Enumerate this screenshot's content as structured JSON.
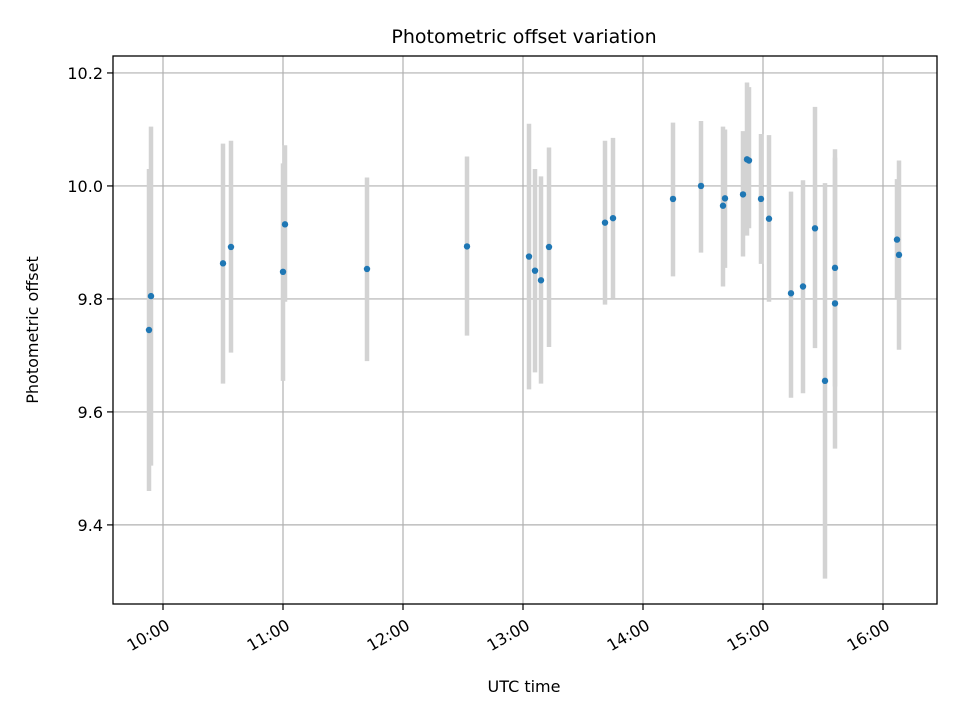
{
  "chart_data": {
    "type": "scatter",
    "title": "Photometric offset variation",
    "xlabel": "UTC time",
    "ylabel": "Photometric offset",
    "x_range": [
      "09:35",
      "16:27"
    ],
    "ylim": [
      9.26,
      10.23
    ],
    "x_ticks": [
      "10:00",
      "11:00",
      "12:00",
      "13:00",
      "14:00",
      "15:00",
      "16:00"
    ],
    "y_ticks": [
      "9.4",
      "9.6",
      "9.8",
      "10.0",
      "10.2"
    ],
    "grid": true,
    "marker_color": "#1f77b4",
    "errorbar_color": "#d3d3d3",
    "points": [
      {
        "x": "09:53",
        "y": 9.745,
        "err_low": 9.46,
        "err_high": 10.03
      },
      {
        "x": "09:54",
        "y": 9.805,
        "err_low": 9.505,
        "err_high": 10.105
      },
      {
        "x": "10:30",
        "y": 9.863,
        "err_low": 9.65,
        "err_high": 10.075
      },
      {
        "x": "10:34",
        "y": 9.892,
        "err_low": 9.705,
        "err_high": 10.08
      },
      {
        "x": "11:00",
        "y": 9.848,
        "err_low": 9.655,
        "err_high": 10.04
      },
      {
        "x": "11:01",
        "y": 9.932,
        "err_low": 9.795,
        "err_high": 10.072
      },
      {
        "x": "11:42",
        "y": 9.853,
        "err_low": 9.69,
        "err_high": 10.015
      },
      {
        "x": "12:32",
        "y": 9.893,
        "err_low": 9.735,
        "err_high": 10.052
      },
      {
        "x": "13:03",
        "y": 9.875,
        "err_low": 9.64,
        "err_high": 10.11
      },
      {
        "x": "13:06",
        "y": 9.85,
        "err_low": 9.67,
        "err_high": 10.03
      },
      {
        "x": "13:09",
        "y": 9.833,
        "err_low": 9.65,
        "err_high": 10.017
      },
      {
        "x": "13:13",
        "y": 9.892,
        "err_low": 9.715,
        "err_high": 10.068
      },
      {
        "x": "13:41",
        "y": 9.935,
        "err_low": 9.79,
        "err_high": 10.08
      },
      {
        "x": "13:45",
        "y": 9.943,
        "err_low": 9.8,
        "err_high": 10.085
      },
      {
        "x": "14:15",
        "y": 9.977,
        "err_low": 9.84,
        "err_high": 10.112
      },
      {
        "x": "14:29",
        "y": 10.0,
        "err_low": 9.882,
        "err_high": 10.115
      },
      {
        "x": "14:40",
        "y": 9.965,
        "err_low": 9.822,
        "err_high": 10.105
      },
      {
        "x": "14:41",
        "y": 9.978,
        "err_low": 9.855,
        "err_high": 10.1
      },
      {
        "x": "14:50",
        "y": 9.985,
        "err_low": 9.875,
        "err_high": 10.097
      },
      {
        "x": "14:52",
        "y": 10.047,
        "err_low": 9.912,
        "err_high": 10.183
      },
      {
        "x": "14:53",
        "y": 10.045,
        "err_low": 9.925,
        "err_high": 10.175
      },
      {
        "x": "14:59",
        "y": 9.977,
        "err_low": 9.862,
        "err_high": 10.092
      },
      {
        "x": "15:03",
        "y": 9.942,
        "err_low": 9.795,
        "err_high": 10.09
      },
      {
        "x": "15:14",
        "y": 9.81,
        "err_low": 9.625,
        "err_high": 9.99
      },
      {
        "x": "15:20",
        "y": 9.822,
        "err_low": 9.633,
        "err_high": 10.01
      },
      {
        "x": "15:26",
        "y": 9.925,
        "err_low": 9.713,
        "err_high": 10.14
      },
      {
        "x": "15:31",
        "y": 9.655,
        "err_low": 9.305,
        "err_high": 10.005
      },
      {
        "x": "15:36",
        "y": 9.855,
        "err_low": 9.645,
        "err_high": 10.065
      },
      {
        "x": "15:36",
        "y": 9.792,
        "err_low": 9.535,
        "err_high": 10.05
      },
      {
        "x": "16:07",
        "y": 9.905,
        "err_low": 9.8,
        "err_high": 10.012
      },
      {
        "x": "16:08",
        "y": 9.878,
        "err_low": 9.71,
        "err_high": 10.045
      }
    ]
  }
}
